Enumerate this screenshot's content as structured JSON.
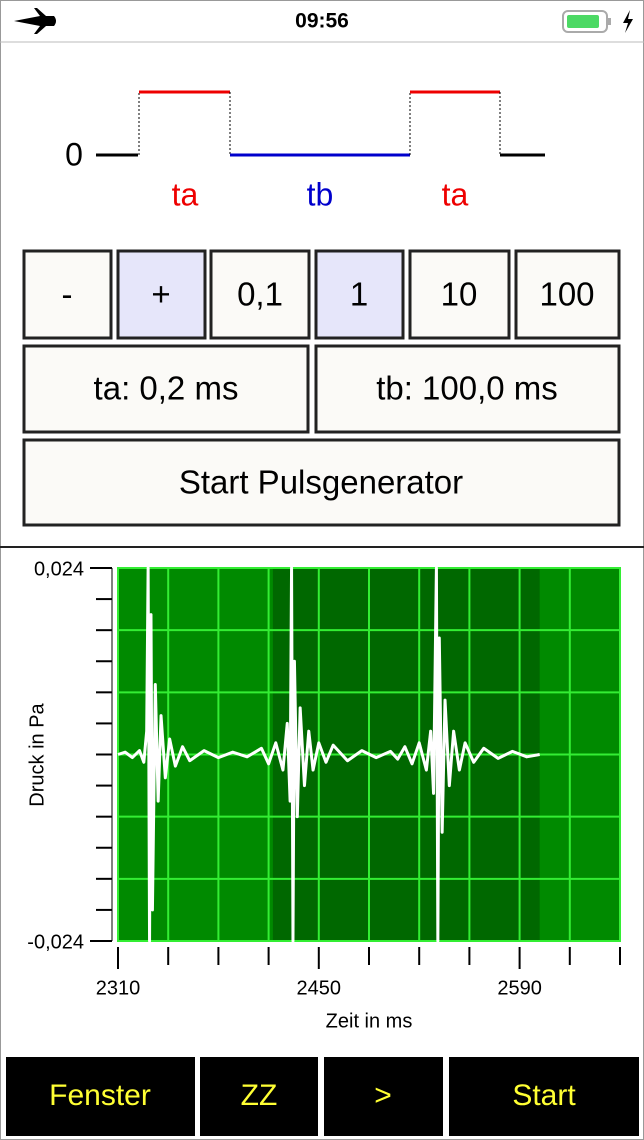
{
  "status_bar": {
    "time": "09:56"
  },
  "pulse_diagram": {
    "zero_label": "0",
    "labels": [
      "ta",
      "tb",
      "ta"
    ]
  },
  "step_buttons": [
    "-",
    "+",
    "0,1",
    "1",
    "10",
    "100"
  ],
  "time_buttons": [
    "ta: 0,2 ms",
    "tb: 100,0 ms"
  ],
  "start_button": "Start Pulsgenerator",
  "chart_data": {
    "type": "line",
    "xlabel": "Zeit in ms",
    "ylabel": "Druck in Pa",
    "xlim": [
      2310,
      2660
    ],
    "ylim": [
      -0.024,
      0.024
    ],
    "xticks": [
      2310,
      2450,
      2590
    ],
    "xminor_ticks": [
      2345,
      2380,
      2415,
      2485,
      2520,
      2555,
      2625,
      2660
    ],
    "yticks": [
      {
        "value": 0.024,
        "label": "0,024"
      },
      {
        "value": -0.024,
        "label": "-0,024"
      }
    ],
    "ygrid": [
      -0.016,
      -0.008,
      0,
      0.008,
      0.016
    ],
    "yminor_ticks": [
      -0.02,
      -0.016,
      -0.012,
      -0.008,
      -0.004,
      0,
      0.004,
      0.008,
      0.012,
      0.016,
      0.02
    ],
    "grid": true,
    "background": "#008a00",
    "shaded_range": [
      2418,
      2604
    ],
    "shaded_color": "#006800",
    "grid_color": "#33ee33",
    "color": "#ffffff",
    "x": [
      2310,
      2315,
      2320,
      2325,
      2328,
      2330,
      2331,
      2332,
      2333,
      2334,
      2336,
      2338,
      2340,
      2343,
      2346,
      2350,
      2355,
      2360,
      2370,
      2380,
      2390,
      2400,
      2410,
      2415,
      2420,
      2425,
      2428,
      2430,
      2431,
      2432,
      2433,
      2435,
      2437,
      2440,
      2443,
      2446,
      2450,
      2455,
      2460,
      2470,
      2480,
      2490,
      2500,
      2505,
      2510,
      2515,
      2520,
      2525,
      2528,
      2530,
      2532,
      2533,
      2534,
      2536,
      2538,
      2541,
      2544,
      2548,
      2552,
      2558,
      2565,
      2575,
      2585,
      2595,
      2604
    ],
    "values": [
      0,
      0.0003,
      -0.0004,
      0.0005,
      -0.001,
      0.003,
      0.024,
      -0.024,
      0.018,
      -0.02,
      0.009,
      -0.006,
      0.005,
      -0.003,
      0.002,
      -0.0015,
      0.001,
      -0.0008,
      0.0005,
      -0.0004,
      0.0003,
      -0.0003,
      0.0008,
      -0.0012,
      0.0015,
      -0.002,
      0.004,
      -0.006,
      0.024,
      -0.024,
      0.012,
      -0.008,
      0.006,
      -0.004,
      0.003,
      -0.002,
      0.0015,
      -0.001,
      0.0012,
      -0.0008,
      0.0005,
      -0.0004,
      0.0004,
      -0.0006,
      0.001,
      -0.0012,
      0.0015,
      -0.002,
      0.003,
      -0.005,
      0.024,
      -0.024,
      0.015,
      -0.01,
      0.007,
      -0.004,
      0.003,
      -0.002,
      0.0015,
      -0.001,
      0.0008,
      -0.0005,
      0.0004,
      -0.0003,
      0
    ]
  },
  "toolbar": [
    "Fenster",
    "ZZ",
    ">",
    "Start"
  ]
}
